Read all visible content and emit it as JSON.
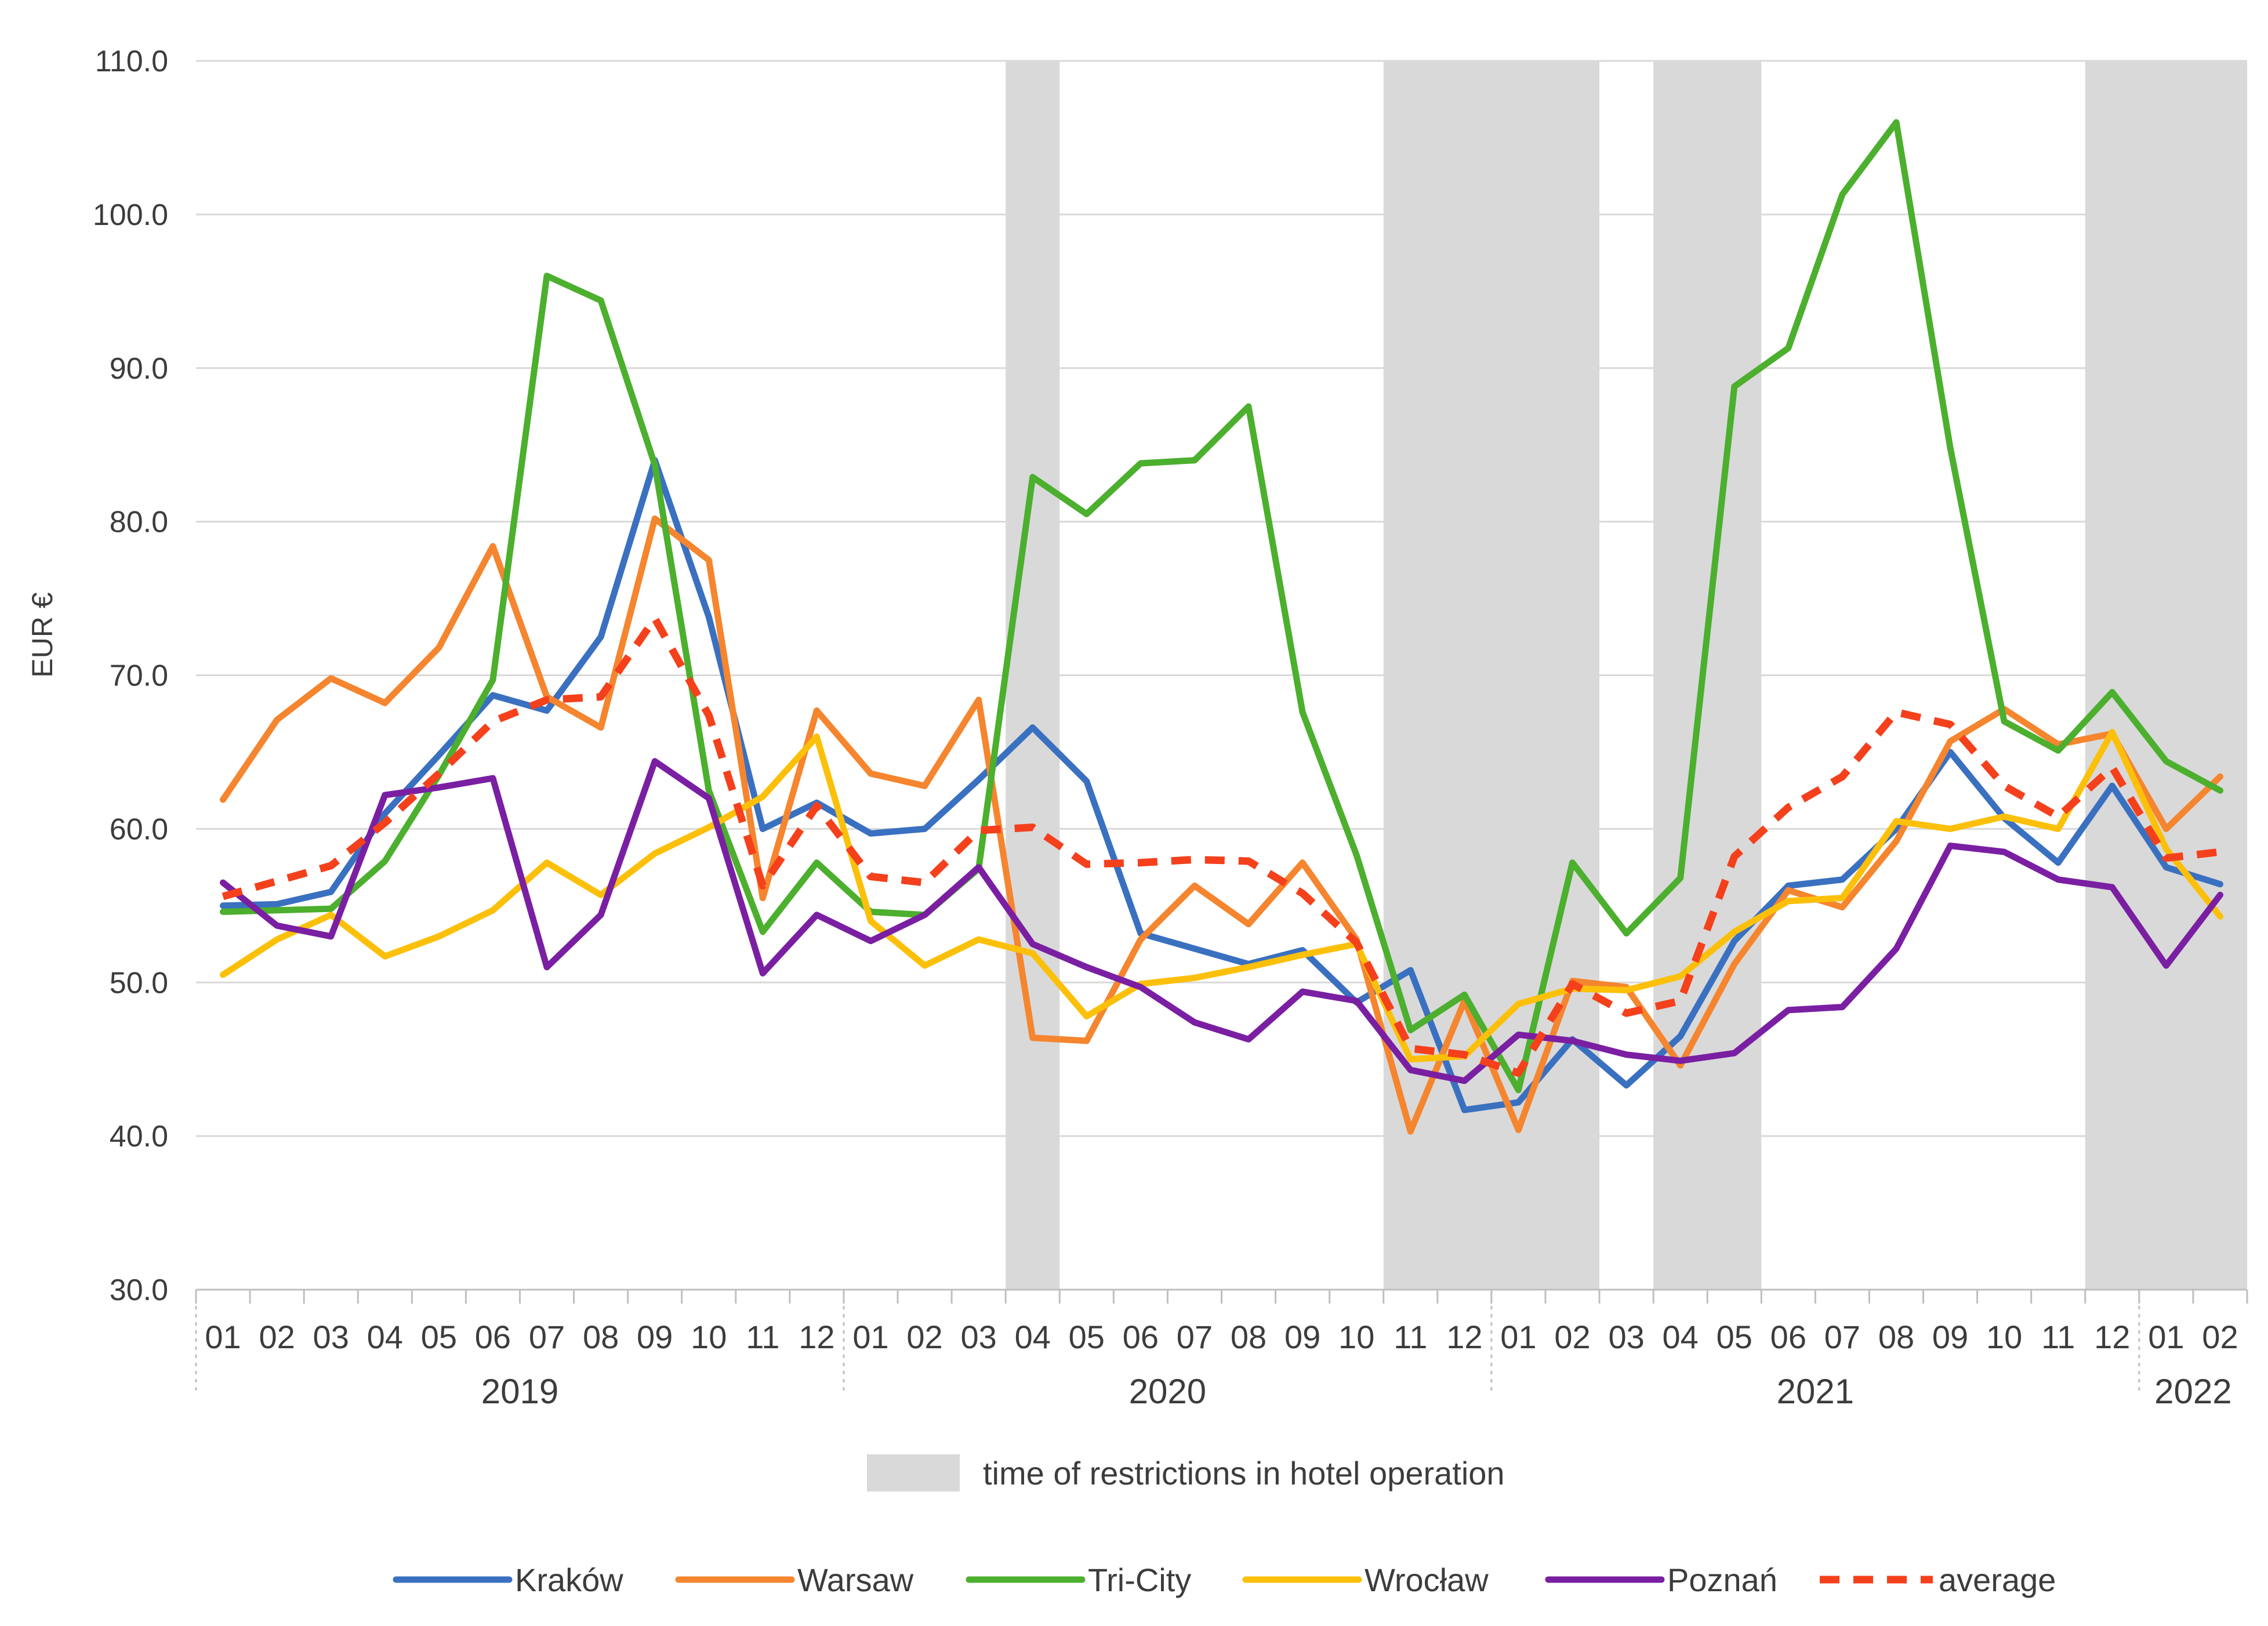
{
  "chart_data": {
    "type": "line",
    "ylabel": "EUR €",
    "ylim": [
      30,
      110
    ],
    "yticks": [
      "30.0",
      "40.0",
      "50.0",
      "60.0",
      "70.0",
      "80.0",
      "90.0",
      "100.0",
      "110.0"
    ],
    "grid": true,
    "months": [
      "01",
      "02",
      "03",
      "04",
      "05",
      "06",
      "07",
      "08",
      "09",
      "10",
      "11",
      "12",
      "01",
      "02",
      "03",
      "04",
      "05",
      "06",
      "07",
      "08",
      "09",
      "10",
      "11",
      "12",
      "01",
      "02",
      "03",
      "04",
      "05",
      "06",
      "07",
      "08",
      "09",
      "10",
      "11",
      "12",
      "01",
      "02"
    ],
    "years": [
      {
        "label": "2019",
        "start": 0,
        "end": 11
      },
      {
        "label": "2020",
        "start": 12,
        "end": 23
      },
      {
        "label": "2021",
        "start": 24,
        "end": 35
      },
      {
        "label": "2022",
        "start": 36,
        "end": 37
      }
    ],
    "restriction_periods": [
      [
        15,
        15
      ],
      [
        22,
        25
      ],
      [
        27,
        28
      ],
      [
        35,
        37
      ]
    ],
    "restriction_legend": "time of restrictions in hotel operation",
    "series": [
      {
        "name": "Kraków",
        "color": "#3a70c0",
        "dashed": false,
        "values": [
          55.0,
          55.1,
          55.9,
          61.0,
          64.8,
          68.7,
          67.7,
          72.5,
          84.0,
          73.8,
          60.0,
          61.7,
          59.7,
          60.0,
          63.2,
          66.6,
          63.1,
          53.2,
          52.2,
          51.2,
          52.1,
          48.7,
          50.8,
          41.7,
          42.2,
          46.3,
          43.3,
          46.5,
          52.7,
          56.3,
          56.7,
          60.0,
          65.0,
          60.7,
          57.8,
          62.8,
          57.5,
          56.4
        ]
      },
      {
        "name": "Warsaw",
        "color": "#f5852e",
        "dashed": false,
        "values": [
          61.9,
          67.1,
          69.8,
          68.2,
          71.8,
          78.4,
          68.6,
          66.6,
          80.2,
          77.5,
          55.5,
          67.7,
          63.6,
          62.8,
          68.4,
          46.4,
          46.2,
          52.8,
          56.3,
          53.8,
          57.8,
          52.8,
          40.3,
          48.8,
          40.4,
          50.1,
          49.7,
          44.6,
          51.2,
          56.0,
          54.9,
          59.2,
          65.7,
          67.8,
          65.5,
          66.2,
          60.0,
          63.4
        ]
      },
      {
        "name": "Tri-City",
        "color": "#4caf2e",
        "dashed": false,
        "values": [
          54.6,
          54.7,
          54.8,
          57.9,
          63.5,
          69.7,
          96.0,
          94.4,
          83.7,
          62.5,
          53.3,
          57.8,
          54.6,
          54.4,
          57.4,
          82.9,
          80.5,
          83.8,
          84.0,
          87.5,
          67.6,
          58.3,
          46.9,
          49.2,
          43.0,
          57.8,
          53.2,
          56.8,
          88.8,
          91.3,
          101.3,
          106.0,
          84.8,
          67.0,
          65.1,
          68.9,
          64.4,
          62.5
        ]
      },
      {
        "name": "Wrocław",
        "color": "#fcc00a",
        "dashed": false,
        "values": [
          50.5,
          52.8,
          54.4,
          51.7,
          53.0,
          54.7,
          57.8,
          55.7,
          58.4,
          60.1,
          62.1,
          66.0,
          54.0,
          51.1,
          52.8,
          51.9,
          47.8,
          49.9,
          50.3,
          51.0,
          51.8,
          52.5,
          45.0,
          45.2,
          48.6,
          49.6,
          49.5,
          50.4,
          53.3,
          55.3,
          55.5,
          60.5,
          60.0,
          60.8,
          60.0,
          66.3,
          58.7,
          54.3
        ]
      },
      {
        "name": "Poznań",
        "color": "#7a1fa2",
        "dashed": false,
        "values": [
          56.5,
          53.7,
          53.0,
          62.2,
          62.7,
          63.3,
          51.0,
          54.4,
          64.4,
          62.0,
          50.6,
          54.4,
          52.7,
          54.4,
          57.5,
          52.5,
          51.0,
          49.7,
          47.4,
          46.3,
          49.4,
          48.8,
          44.3,
          43.6,
          46.6,
          46.2,
          45.3,
          44.9,
          45.4,
          48.2,
          48.4,
          52.2,
          58.9,
          58.5,
          56.7,
          56.2,
          51.1,
          55.7
        ]
      },
      {
        "name": "average",
        "color": "#f5401c",
        "dashed": true,
        "values": [
          55.6,
          56.6,
          57.6,
          60.4,
          63.6,
          67.0,
          68.4,
          68.6,
          73.7,
          67.4,
          56.3,
          61.5,
          56.9,
          56.5,
          59.9,
          60.1,
          57.7,
          57.8,
          58.0,
          57.9,
          55.8,
          52.6,
          45.7,
          45.3,
          44.1,
          49.9,
          48.0,
          48.8,
          58.2,
          61.4,
          63.4,
          67.6,
          66.8,
          62.8,
          60.8,
          64.0,
          58.1,
          58.5
        ]
      }
    ]
  }
}
